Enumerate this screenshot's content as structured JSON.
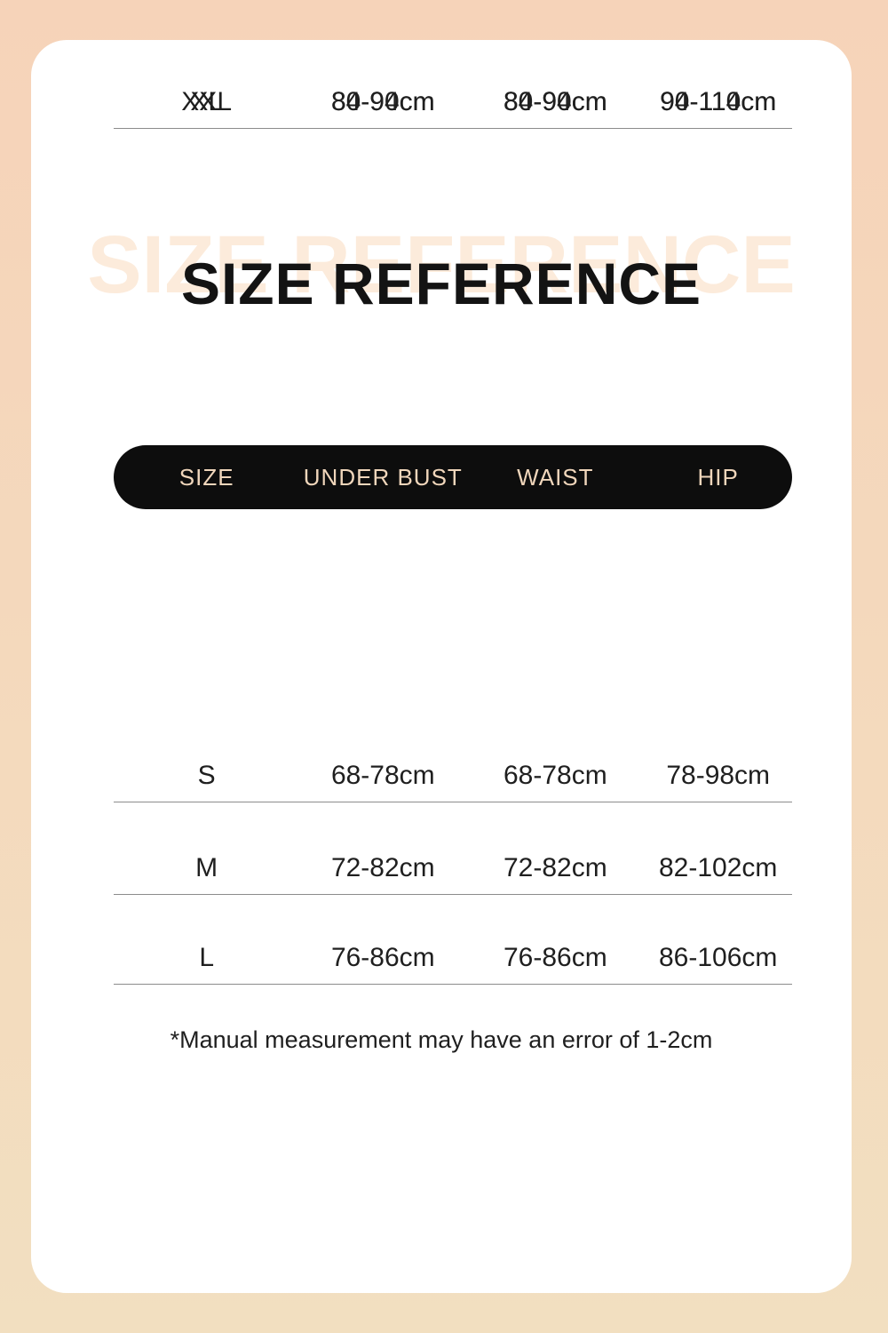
{
  "title": {
    "ghost": "SIZE REFERENCE",
    "main": "SIZE REFERENCE"
  },
  "table": {
    "columns": [
      {
        "label": "SIZE"
      },
      {
        "label": "UNDER BUST"
      },
      {
        "label": "WAIST"
      },
      {
        "label": "HIP"
      }
    ],
    "rows": [
      {
        "size": "S",
        "under_bust": "68-78cm",
        "waist": "68-78cm",
        "hip": "78-98cm"
      },
      {
        "size": "M",
        "under_bust": "72-82cm",
        "waist": "72-82cm",
        "hip": "82-102cm"
      },
      {
        "size": "L",
        "under_bust": "76-86cm",
        "waist": "76-86cm",
        "hip": "86-106cm"
      },
      {
        "size": "XL",
        "under_bust": "80-90cm",
        "waist": "80-90cm",
        "hip": "90-110cm"
      },
      {
        "size": "XXL",
        "under_bust": "84-94cm",
        "waist": "84-94cm",
        "hip": "94-114cm"
      }
    ]
  },
  "footnote": "*Manual measurement may have an error of 1-2cm",
  "colors": {
    "background_top": "#f6d3b9",
    "background_bottom": "#f2dfc0",
    "card": "#ffffff",
    "ghost_title": "#fcebdb",
    "title": "#131313",
    "header_pill": "#0d0d0d",
    "header_text": "#f0d6bb",
    "row_text": "#1f1f1f",
    "divider": "#8c8c8c"
  }
}
